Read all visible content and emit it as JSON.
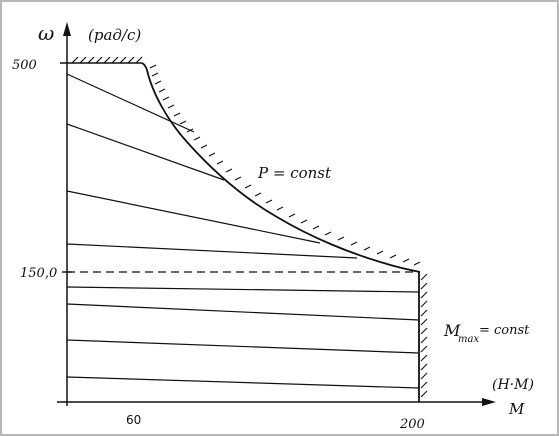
{
  "axes": {
    "y_axis_symbol": "ω",
    "y_axis_unit": "(рад/с)",
    "x_axis_symbol": "M",
    "x_axis_unit": "(Н·М)"
  },
  "ticks": {
    "y_top": "500",
    "y_mid": "150,0",
    "x_60": "60",
    "x_200": "200"
  },
  "annotations": {
    "power_curve": "P = const",
    "torque_limit_main": "M",
    "torque_limit_sub": "max",
    "torque_limit_rest": "= const"
  }
}
